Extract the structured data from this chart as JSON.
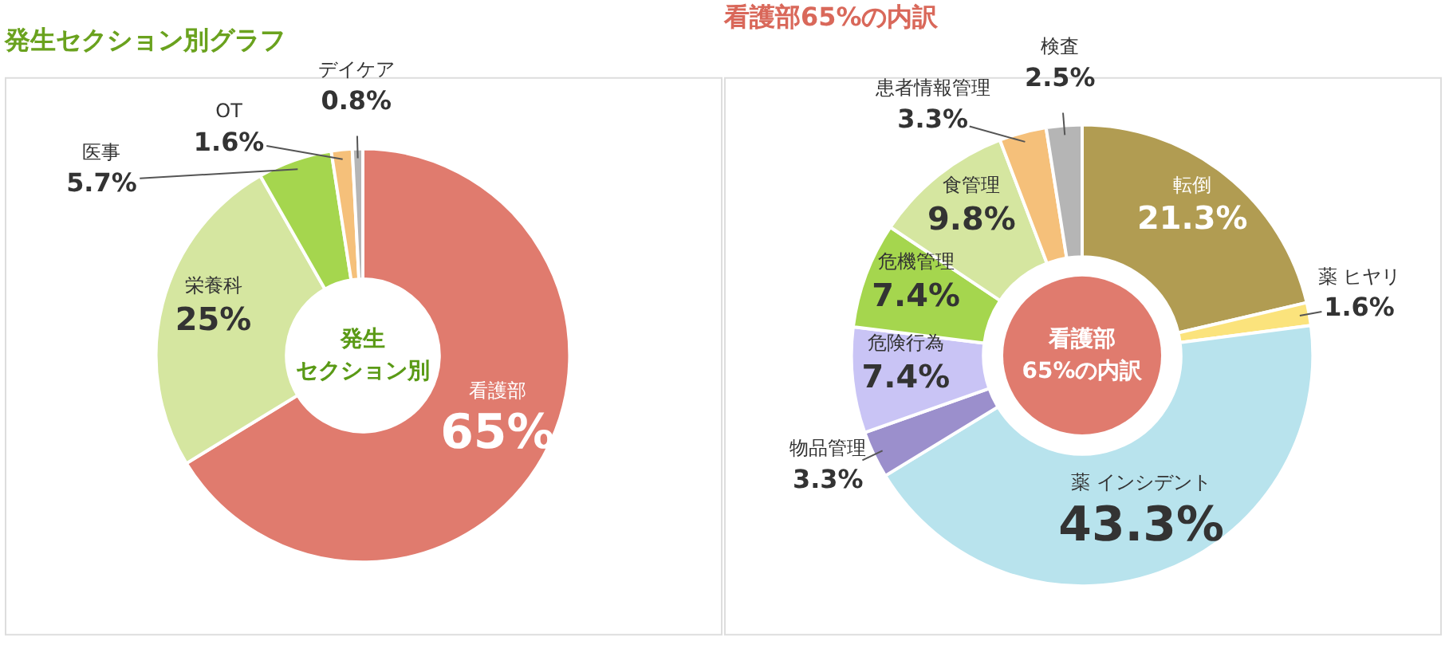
{
  "chart_data": [
    {
      "type": "donut",
      "title": "発生セクション別グラフ",
      "categories": [
        "看護部",
        "栄養科",
        "医事",
        "OT",
        "デイケア"
      ],
      "values": [
        65,
        25,
        5.7,
        1.6,
        0.8
      ],
      "colors": [
        "#e07b6e",
        "#d5e6a0",
        "#a5d64e",
        "#f5c07a",
        "#b5b5b5"
      ],
      "value_labels": [
        "65%",
        "25%",
        "5.7%",
        "1.6%",
        "0.8%"
      ],
      "annotations": [
        "発生",
        "セクション別"
      ]
    },
    {
      "type": "donut",
      "title": "看護部65%の内訳",
      "categories": [
        "転倒",
        "薬 ヒヤリ",
        "薬 インシデント",
        "物品管理",
        "危険行為",
        "危機管理",
        "食管理",
        "患者情報管理",
        "検査"
      ],
      "values": [
        21.3,
        1.6,
        43.3,
        3.3,
        7.4,
        7.4,
        9.8,
        3.3,
        2.5
      ],
      "colors": [
        "#b19c52",
        "#fbe37c",
        "#b8e3ed",
        "#9b8fcc",
        "#c9c4f5",
        "#a5d64e",
        "#d5e6a0",
        "#f5c07a",
        "#b5b5b5"
      ],
      "value_labels": [
        "21.3%",
        "1.6%",
        "43.3%",
        "3.3%",
        "7.4%",
        "7.4%",
        "9.8%",
        "3.3%",
        "2.5%"
      ],
      "annotations": [
        "看護部",
        "65%の内訳"
      ]
    }
  ]
}
